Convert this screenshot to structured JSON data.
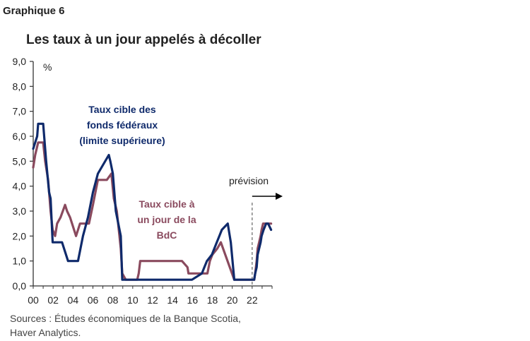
{
  "figure": {
    "label": "Graphique 6",
    "title": "Les taux à un jour appelés à décoller",
    "source_line1": "Sources : Études économiques de la Banque Scotia,",
    "source_line2": "Haver Analytics.",
    "forecast_label": "prévision"
  },
  "colors": {
    "fed": "#0f2a6b",
    "boc": "#8a4a5e",
    "axis": "#333333",
    "text": "#222222"
  },
  "chart_data": {
    "type": "line",
    "title": "Les taux à un jour appelés à décoller",
    "ylabel": "%",
    "xlabel": "",
    "ylim": [
      0,
      9
    ],
    "xlim": [
      2000,
      2024
    ],
    "grid": false,
    "forecast_start": 2022,
    "yticks": [
      "0,0",
      "1,0",
      "2,0",
      "3,0",
      "4,0",
      "5,0",
      "6,0",
      "7,0",
      "8,0",
      "9,0"
    ],
    "xticks": [
      "00",
      "02",
      "04",
      "06",
      "08",
      "10",
      "12",
      "14",
      "16",
      "18",
      "20",
      "22"
    ],
    "series": [
      {
        "name": "Taux cible des fonds fédéraux (limite supérieure)",
        "label_lines": [
          "Taux cible des",
          "fonds fédéraux",
          "(limite supérieure)"
        ],
        "color": "#0f2a6b",
        "x": [
          2000.0,
          2000.2,
          2000.4,
          2000.5,
          2001.0,
          2001.1,
          2001.3,
          2001.6,
          2001.75,
          2001.95,
          2002.9,
          2003.5,
          2004.5,
          2005.0,
          2005.5,
          2006.0,
          2006.5,
          2007.6,
          2007.75,
          2008.0,
          2008.3,
          2008.8,
          2008.95,
          2015.95,
          2016.95,
          2017.2,
          2017.45,
          2017.95,
          2018.2,
          2018.45,
          2018.7,
          2018.95,
          2019.55,
          2019.65,
          2019.85,
          2020.2,
          2022.2,
          2022.3,
          2022.45,
          2022.55,
          2022.7,
          2022.85,
          2022.95,
          2023.15,
          2023.4,
          2023.6,
          2023.9
        ],
        "y": [
          5.5,
          5.75,
          6.0,
          6.5,
          6.5,
          6.0,
          5.0,
          3.75,
          3.5,
          1.75,
          1.75,
          1.0,
          1.0,
          2.0,
          2.75,
          3.75,
          4.5,
          5.25,
          5.0,
          4.5,
          3.0,
          2.0,
          0.25,
          0.25,
          0.5,
          0.75,
          1.0,
          1.25,
          1.5,
          1.75,
          2.0,
          2.25,
          2.5,
          2.25,
          1.75,
          0.25,
          0.25,
          0.5,
          0.75,
          1.25,
          1.5,
          1.75,
          2.0,
          2.25,
          2.5,
          2.5,
          2.25
        ]
      },
      {
        "name": "Taux cible à un jour de la BdC",
        "label_lines": [
          "Taux cible à",
          "un jour de la",
          "BdC"
        ],
        "color": "#8a4a5e",
        "x": [
          2000.0,
          2000.2,
          2000.5,
          2001.0,
          2001.2,
          2001.5,
          2001.75,
          2001.95,
          2002.2,
          2002.4,
          2002.75,
          2003.2,
          2003.4,
          2003.7,
          2004.3,
          2004.7,
          2005.6,
          2006.0,
          2006.5,
          2007.4,
          2007.85,
          2008.1,
          2008.4,
          2008.8,
          2008.95,
          2009.3,
          2010.45,
          2010.6,
          2010.75,
          2014.95,
          2015.5,
          2015.6,
          2017.5,
          2017.75,
          2018.0,
          2018.5,
          2018.85,
          2020.2,
          2022.2,
          2022.3,
          2022.45,
          2022.55,
          2022.7,
          2022.85,
          2022.95,
          2023.1,
          2023.3,
          2023.9
        ],
        "y": [
          4.75,
          5.25,
          5.75,
          5.75,
          5.0,
          4.25,
          3.0,
          2.25,
          2.0,
          2.5,
          2.75,
          3.25,
          3.0,
          2.75,
          2.0,
          2.5,
          2.5,
          3.25,
          4.25,
          4.25,
          4.5,
          3.5,
          3.0,
          1.5,
          0.5,
          0.25,
          0.25,
          0.5,
          1.0,
          1.0,
          0.75,
          0.5,
          0.5,
          1.0,
          1.25,
          1.5,
          1.75,
          0.25,
          0.25,
          0.5,
          1.0,
          1.5,
          1.75,
          2.0,
          2.25,
          2.5,
          2.5,
          2.5
        ]
      }
    ]
  }
}
